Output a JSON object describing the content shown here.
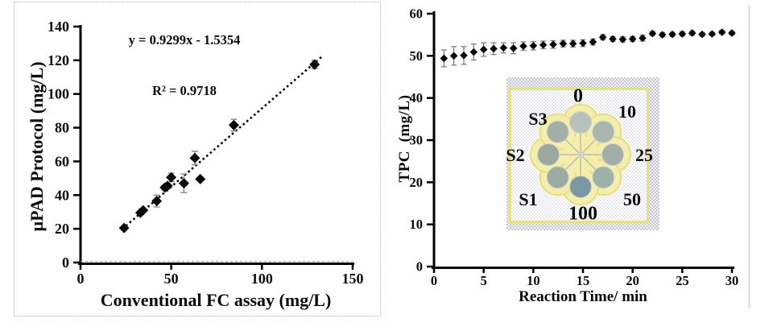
{
  "chart_data": [
    {
      "type": "scatter",
      "xlabel": "Conventional FC assay (mg/L)",
      "ylabel": "µPAD Protocol (mg/L)",
      "xlim": [
        0,
        150
      ],
      "ylim": [
        0,
        140
      ],
      "xticks": [
        0,
        50,
        100,
        150
      ],
      "yticks": [
        0,
        20,
        40,
        60,
        80,
        100,
        120,
        140
      ],
      "grid": false,
      "marker": "diamond",
      "annotations": {
        "equation": "y = 0.9299x - 1.5354",
        "r_squared": "R² = 0.9718"
      },
      "points": [
        {
          "x": 24,
          "y": 20.5,
          "yerr": 0
        },
        {
          "x": 33,
          "y": 29.5,
          "yerr": 0
        },
        {
          "x": 34.5,
          "y": 31,
          "yerr": 0
        },
        {
          "x": 42,
          "y": 36.5,
          "yerr": 3.5
        },
        {
          "x": 46.5,
          "y": 44.5,
          "yerr": 1.5
        },
        {
          "x": 48,
          "y": 45.5,
          "yerr": 0
        },
        {
          "x": 50,
          "y": 50.5,
          "yerr": 2.5
        },
        {
          "x": 57,
          "y": 47,
          "yerr": 5.5
        },
        {
          "x": 63,
          "y": 62,
          "yerr": 4
        },
        {
          "x": 66,
          "y": 49.5,
          "yerr": 0
        },
        {
          "x": 84.5,
          "y": 81.5,
          "yerr": 3.5
        },
        {
          "x": 129,
          "y": 117.5,
          "yerr": 2.5
        }
      ],
      "trendline": {
        "slope": 0.9299,
        "intercept": -1.5354,
        "x_start": 23,
        "x_end": 133.5,
        "style": "dotted"
      }
    },
    {
      "type": "scatter",
      "xlabel": "Reaction Time/ min",
      "ylabel": "TPC  (mg/L)",
      "xlim": [
        0,
        30
      ],
      "ylim": [
        0,
        60
      ],
      "xticks": [
        0,
        5,
        10,
        15,
        20,
        25,
        30
      ],
      "yticks": [
        0,
        10,
        20,
        30,
        40,
        50,
        60
      ],
      "grid": false,
      "marker": "diamond",
      "x": [
        1,
        2,
        3,
        4,
        5,
        6,
        7,
        8,
        9,
        10,
        11,
        12,
        13,
        14,
        15,
        16,
        17,
        18,
        19,
        20,
        21,
        22,
        23,
        24,
        25,
        26,
        27,
        28,
        29,
        30
      ],
      "values": [
        49.4,
        50.0,
        50.1,
        50.9,
        51.5,
        51.7,
        51.9,
        51.8,
        52.3,
        52.4,
        52.6,
        52.7,
        52.9,
        52.9,
        53.0,
        53.3,
        54.4,
        54.0,
        53.9,
        54.0,
        54.2,
        55.3,
        55.0,
        55.1,
        55.2,
        55.4,
        55.1,
        55.2,
        55.6,
        55.4
      ],
      "yerr": [
        2.0,
        2.2,
        2.1,
        1.9,
        1.6,
        1.4,
        1.2,
        1.3,
        1.0,
        1.0,
        0.9,
        0.9,
        0.8,
        0.8,
        0.8,
        0.7,
        0.6,
        0.6,
        0.6,
        0.6,
        0.7,
        0.5,
        0.5,
        0.5,
        0.5,
        0.5,
        0.4,
        0.4,
        0.4,
        0.4
      ],
      "inset": {
        "labels": [
          "0",
          "10",
          "25",
          "50",
          "100",
          "S1",
          "S2",
          "S3"
        ],
        "well_colors": [
          "#b7c1bb",
          "#a7b7ae",
          "#a3aeab",
          "#9db1a8",
          "#7b97a1",
          "#9aaba3",
          "#9ba8a1",
          "#a2afa7"
        ],
        "petal_color": "#f4eeaa",
        "petal_edge_color": "#e6df7d",
        "border_color": "#e9e27a"
      }
    }
  ],
  "colors": {
    "marker": "#0a0a0a",
    "error_bar": "#7f7f7f",
    "axis": "#000000",
    "panel_border": "#b5b5b5",
    "edge_line": "#d8d8d8"
  }
}
